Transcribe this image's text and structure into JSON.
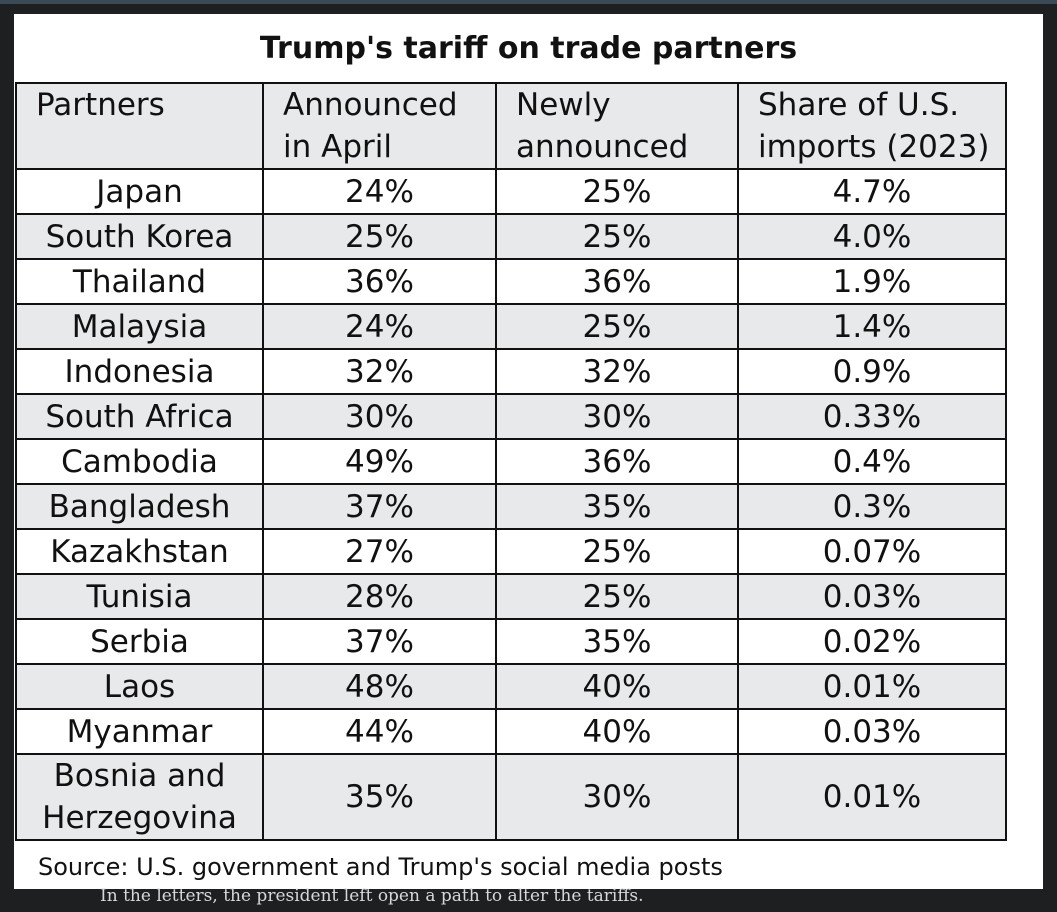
{
  "title": "Trump's tariff on trade partners",
  "headers": {
    "partners": "Partners",
    "announced_line1": "Announced",
    "announced_line2": "in April",
    "newly_line1": "Newly",
    "newly_line2": "announced",
    "share_line1": "Share of U.S.",
    "share_line2": "imports (2023)"
  },
  "rows": [
    {
      "partner": "Japan",
      "april": "24%",
      "newly": "25%",
      "share": "4.7%"
    },
    {
      "partner": "South Korea",
      "april": "25%",
      "newly": "25%",
      "share": "4.0%"
    },
    {
      "partner": "Thailand",
      "april": "36%",
      "newly": "36%",
      "share": "1.9%"
    },
    {
      "partner": "Malaysia",
      "april": "24%",
      "newly": "25%",
      "share": "1.4%"
    },
    {
      "partner": "Indonesia",
      "april": "32%",
      "newly": "32%",
      "share": "0.9%"
    },
    {
      "partner": "South Africa",
      "april": "30%",
      "newly": "30%",
      "share": "0.33%"
    },
    {
      "partner": "Cambodia",
      "april": "49%",
      "newly": "36%",
      "share": "0.4%"
    },
    {
      "partner": "Bangladesh",
      "april": "37%",
      "newly": "35%",
      "share": "0.3%"
    },
    {
      "partner": "Kazakhstan",
      "april": "27%",
      "newly": "25%",
      "share": "0.07%"
    },
    {
      "partner": "Tunisia",
      "april": "28%",
      "newly": "25%",
      "share": "0.03%"
    },
    {
      "partner": "Serbia",
      "april": "37%",
      "newly": "35%",
      "share": "0.02%"
    },
    {
      "partner": "Laos",
      "april": "48%",
      "newly": "40%",
      "share": "0.01%"
    },
    {
      "partner": "Myanmar",
      "april": "44%",
      "newly": "40%",
      "share": "0.03%"
    }
  ],
  "last_row": {
    "partner_line1": "Bosnia and",
    "partner_line2": "Herzegovina",
    "april": "35%",
    "newly": "30%",
    "share": "0.01%"
  },
  "source": "Source: U.S. government and Trump's social media posts",
  "background_text": "In the letters, the president left open a path to alter the tariffs."
}
